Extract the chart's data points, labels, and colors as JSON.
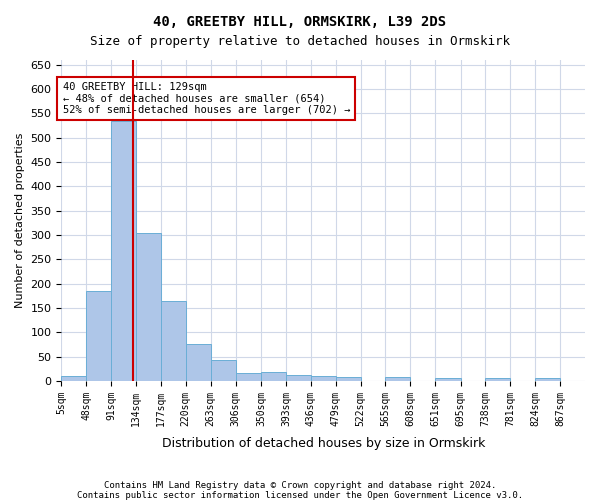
{
  "title1": "40, GREETBY HILL, ORMSKIRK, L39 2DS",
  "title2": "Size of property relative to detached houses in Ormskirk",
  "xlabel": "Distribution of detached houses by size in Ormskirk",
  "ylabel": "Number of detached properties",
  "footer1": "Contains HM Land Registry data © Crown copyright and database right 2024.",
  "footer2": "Contains public sector information licensed under the Open Government Licence v3.0.",
  "bin_labels": [
    "5sqm",
    "48sqm",
    "91sqm",
    "134sqm",
    "177sqm",
    "220sqm",
    "263sqm",
    "306sqm",
    "350sqm",
    "393sqm",
    "436sqm",
    "479sqm",
    "522sqm",
    "565sqm",
    "608sqm",
    "651sqm",
    "695sqm",
    "738sqm",
    "781sqm",
    "824sqm",
    "867sqm"
  ],
  "bar_values": [
    10,
    185,
    535,
    305,
    165,
    75,
    42,
    17,
    19,
    12,
    11,
    8,
    0,
    8,
    0,
    5,
    0,
    5,
    0,
    5,
    0
  ],
  "bar_color": "#aec6e8",
  "bar_edge_color": "#6aaed6",
  "grid_color": "#d0d8e8",
  "vline_x": 129,
  "vline_color": "#cc0000",
  "annotation_text": "40 GREETBY HILL: 129sqm\n← 48% of detached houses are smaller (654)\n52% of semi-detached houses are larger (702) →",
  "annotation_box_color": "#ffffff",
  "annotation_box_edge": "#cc0000",
  "ylim": [
    0,
    660
  ],
  "bin_edges": [
    5,
    48,
    91,
    134,
    177,
    220,
    263,
    306,
    350,
    393,
    436,
    479,
    522,
    565,
    608,
    651,
    695,
    738,
    781,
    824,
    867,
    910
  ]
}
